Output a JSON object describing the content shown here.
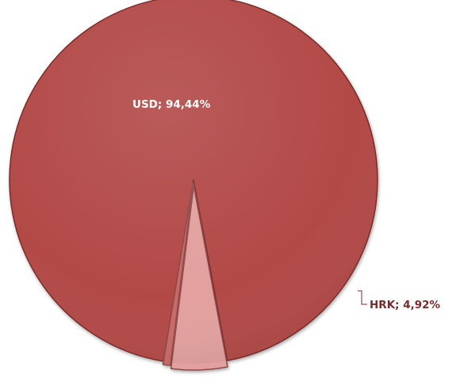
{
  "chart_data": {
    "type": "pie",
    "title": "",
    "slices": [
      {
        "name": "USD",
        "value": 94.44,
        "label": "USD; 94,44%",
        "color": "#b24a47",
        "edge_color": "#7a2a28"
      },
      {
        "name": "HRK",
        "value": 4.92,
        "label": "HRK; 4,92%",
        "color": "#e2a09e",
        "edge_color": "#8f4a48"
      },
      {
        "name": "",
        "value": 0.64,
        "label": "",
        "color": "#c96a67",
        "edge_color": "#8f4a48"
      }
    ],
    "label_colors": {
      "inside": "#ffffff",
      "outside": "#7a2a2a"
    },
    "legend": "none"
  }
}
